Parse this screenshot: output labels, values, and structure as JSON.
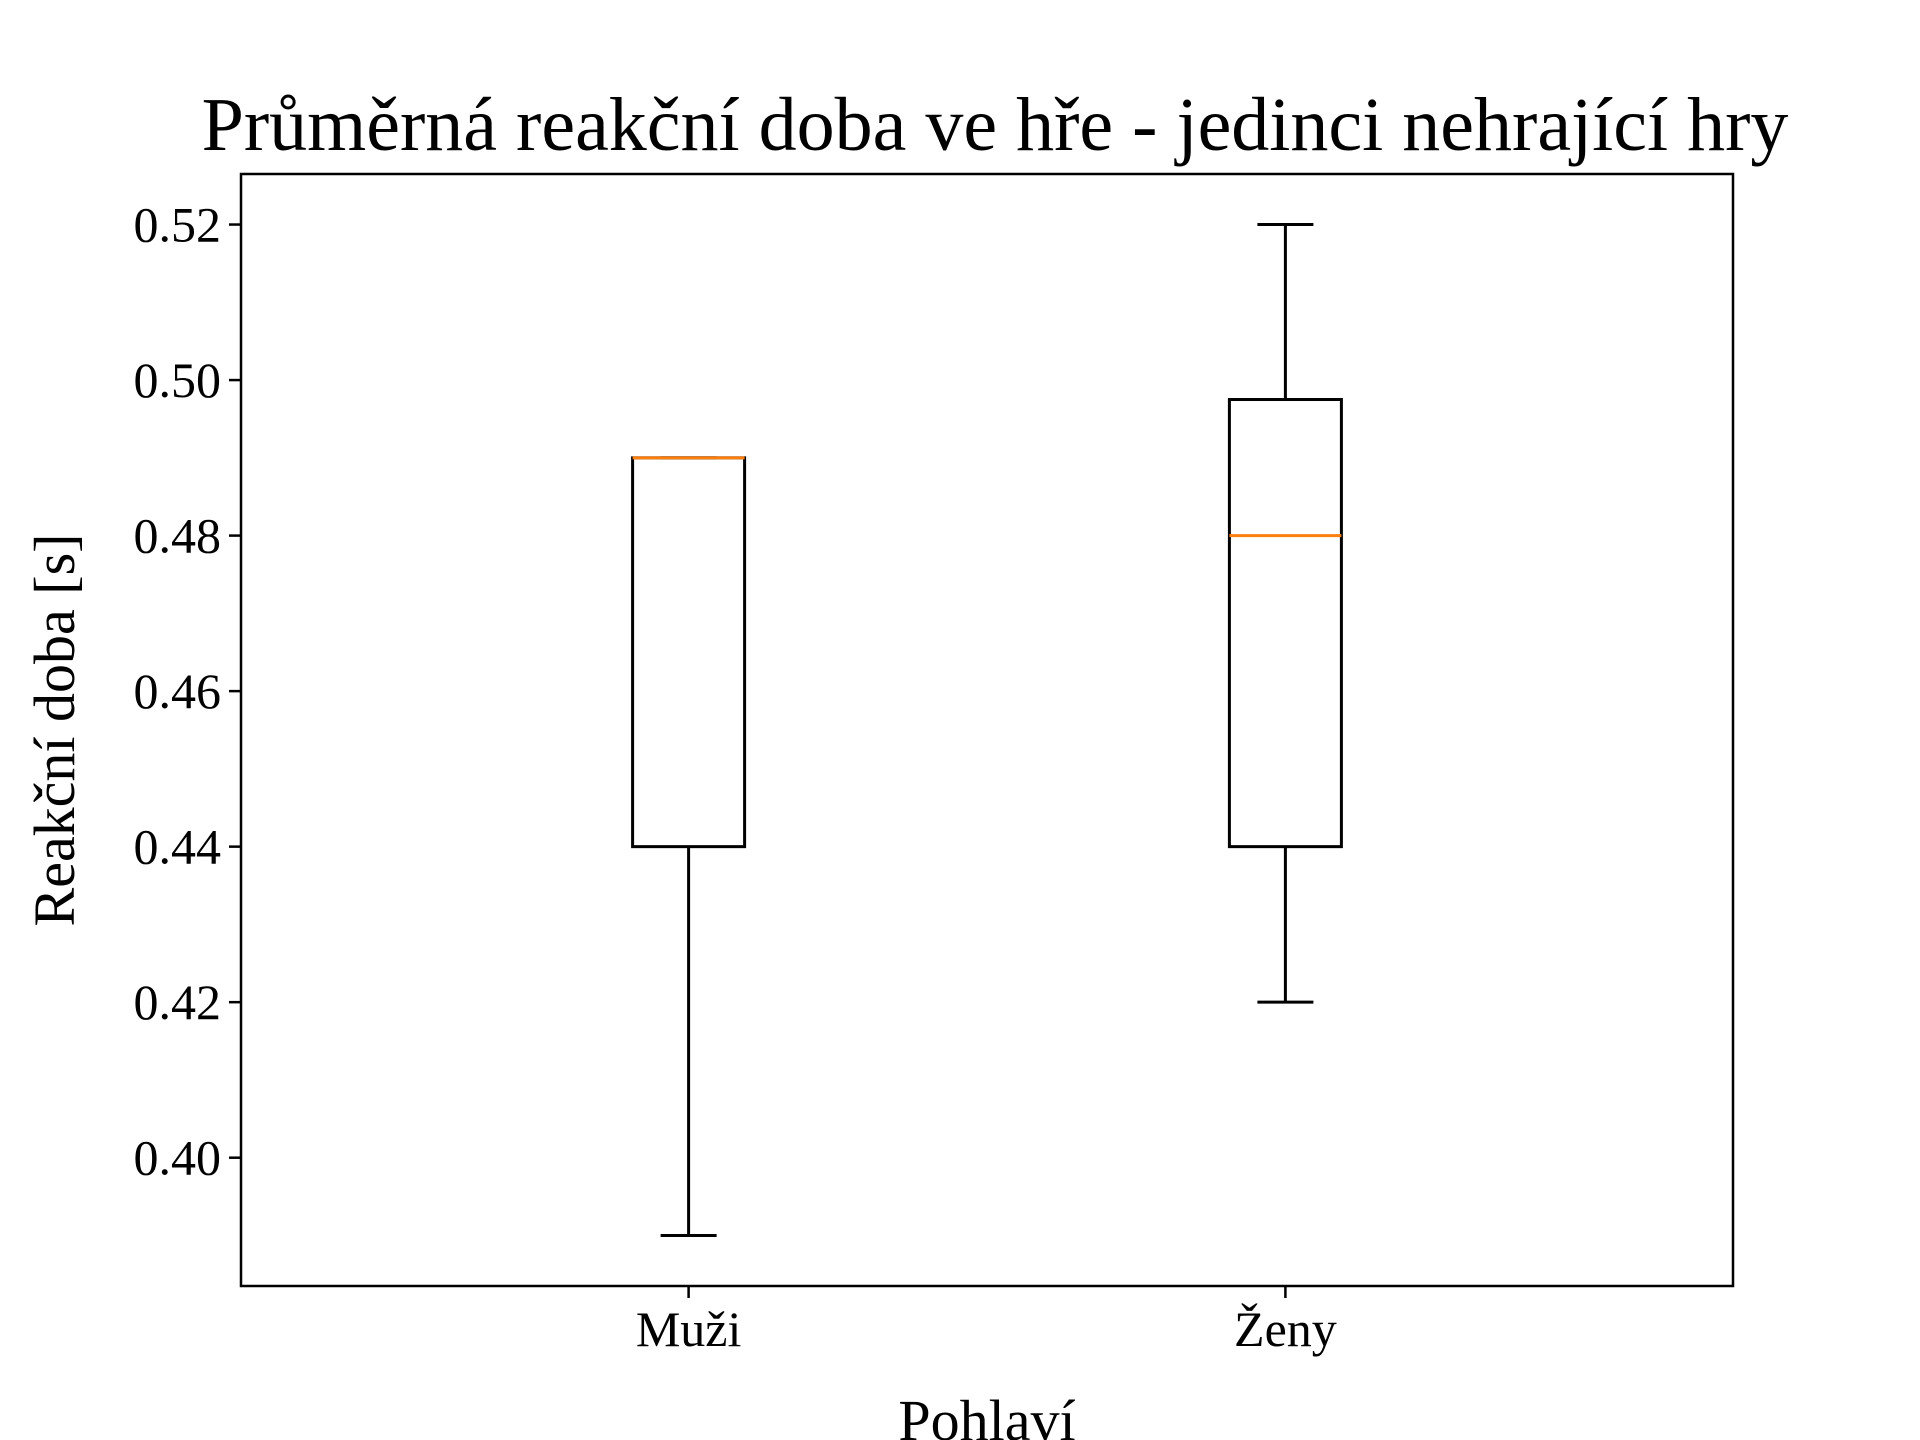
{
  "chart_data": {
    "type": "boxplot",
    "title": "Průměrná reakční doba ve hře - jedinci nehrající hry",
    "xlabel": "Pohlaví",
    "ylabel": "Reakční doba [s]",
    "categories": [
      "Muži",
      "Ženy"
    ],
    "boxes": [
      {
        "category": "Muži",
        "whisker_low": 0.39,
        "q1": 0.44,
        "median": 0.49,
        "q3": 0.49,
        "whisker_high": 0.49
      },
      {
        "category": "Ženy",
        "whisker_low": 0.42,
        "q1": 0.44,
        "median": 0.48,
        "q3": 0.4975,
        "whisker_high": 0.52
      }
    ],
    "yticks": [
      0.4,
      0.42,
      0.44,
      0.46,
      0.48,
      0.5,
      0.52
    ],
    "ytick_labels": [
      "0.40",
      "0.42",
      "0.44",
      "0.46",
      "0.48",
      "0.50",
      "0.52"
    ],
    "ylim": [
      0.3835,
      0.5265
    ],
    "grid": false,
    "colors": {
      "box": "#000000",
      "median": "#ff7f0e"
    }
  }
}
